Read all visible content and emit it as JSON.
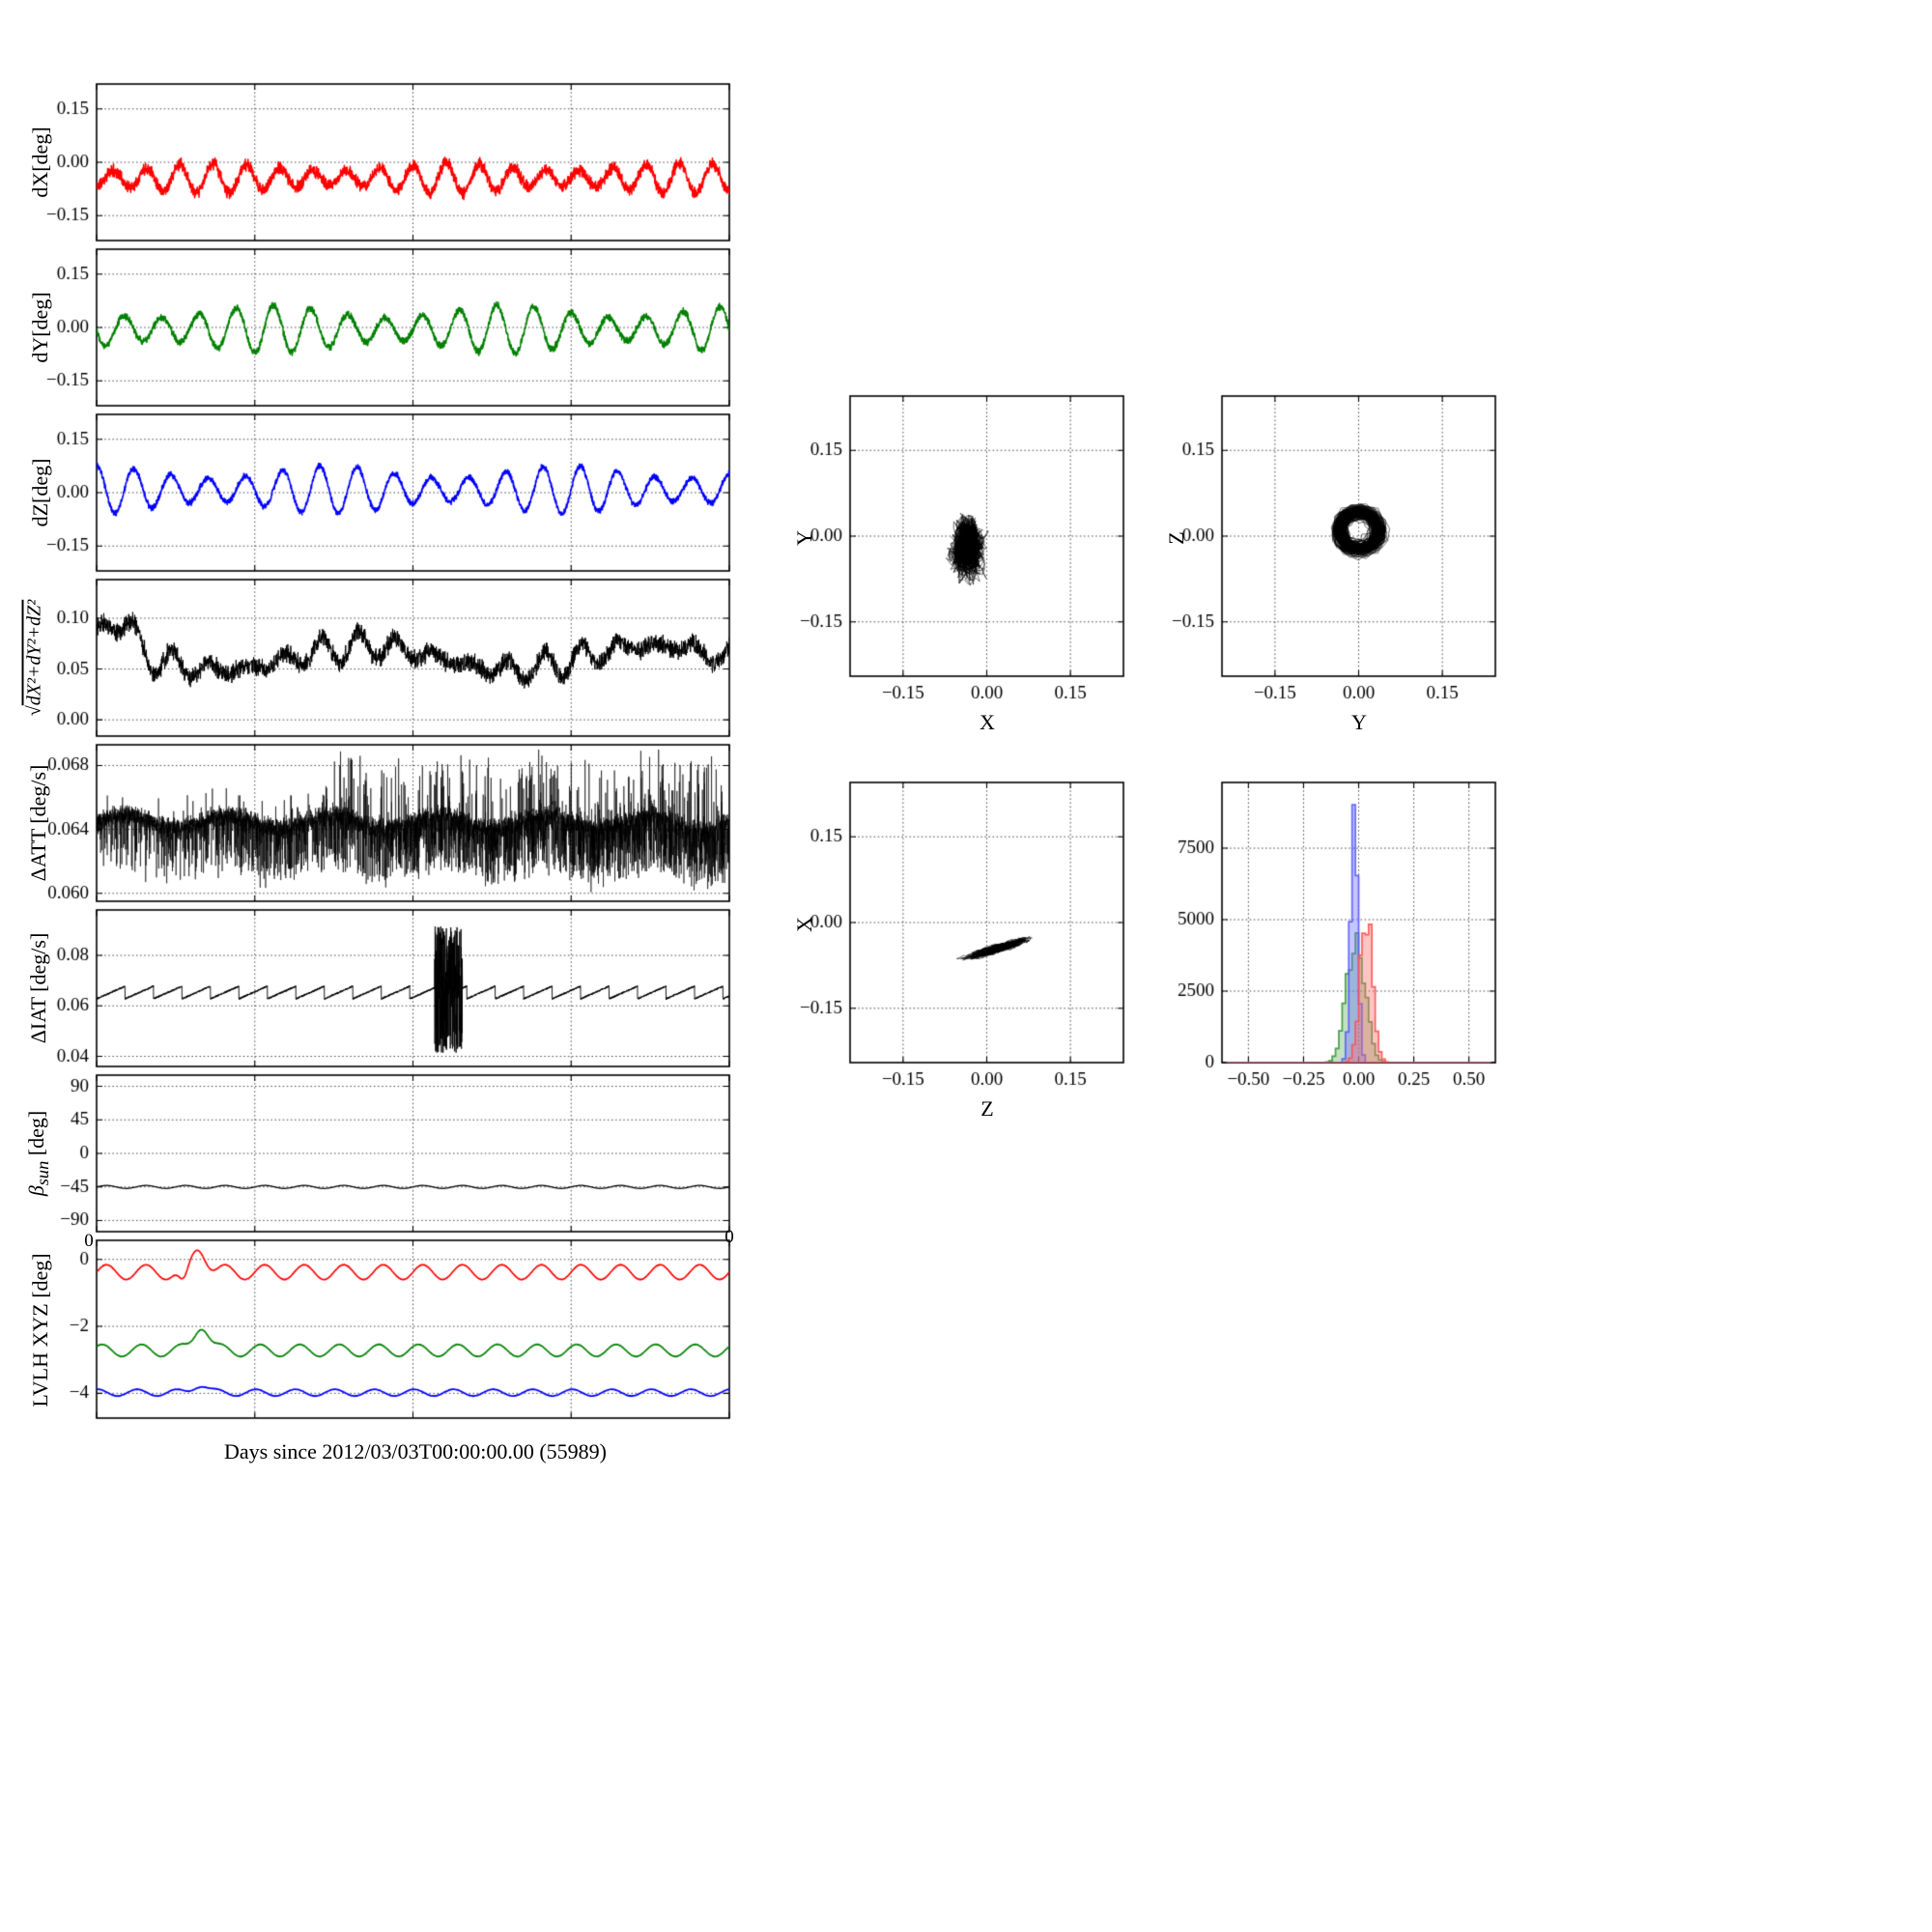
{
  "figure": {
    "xlabel": "Days since 2012/03/03T00:00:00.00 (55989)"
  },
  "chart_data": {
    "type": "line",
    "layout": "8 stacked time-series panels (left), 3 scatter panels + 1 histogram (right)",
    "x_axis": {
      "label": "Days since 2012/03/03T00:00:00.00 (55989)",
      "range_days": [
        0,
        16
      ],
      "ticks": [
        0,
        4,
        8,
        12,
        16
      ]
    },
    "plots": {
      "dx": {
        "kind": "osc",
        "ylabel": "dX[deg]",
        "color": "#ff0000",
        "y_range": [
          -0.22,
          0.22
        ],
        "yticks": {
          "values": [
            0.15,
            0.0,
            -0.15
          ],
          "labels": [
            "0.15",
            "0.00",
            "−0.15"
          ]
        },
        "summary": {
          "mean": -0.045,
          "amplitude": 0.032,
          "cycles": 19,
          "noise": 0.02,
          "clip_max": 0.015
        },
        "seed": 11
      },
      "dy": {
        "kind": "osc",
        "ylabel": "dY[deg]",
        "color": "#008000",
        "y_range": [
          -0.22,
          0.22
        ],
        "yticks": {
          "values": [
            0.15,
            0.0,
            -0.15
          ],
          "labels": [
            "0.15",
            "0.00",
            "−0.15"
          ]
        },
        "summary": {
          "mean": -0.005,
          "amplitude": 0.05,
          "cycles": 17,
          "noise": 0.012
        },
        "seed": 22
      },
      "dz": {
        "kind": "osc",
        "ylabel": "dZ[deg]",
        "color": "#0000ff",
        "y_range": [
          -0.22,
          0.22
        ],
        "yticks": {
          "values": [
            0.15,
            0.0,
            -0.15
          ],
          "labels": [
            "0.15",
            "0.00",
            "−0.15"
          ]
        },
        "summary": {
          "mean": 0.008,
          "amplitude": 0.05,
          "cycles": 17,
          "noise": 0.01
        },
        "seed": 33
      },
      "mag": {
        "kind": "mag",
        "ylabel_radical": "√",
        "ylabel_expr": "dX²+dY²+dZ²",
        "color": "#000000",
        "y_range": [
          -0.016,
          0.138
        ],
        "yticks": {
          "values": [
            0.1,
            0.05,
            0.0
          ],
          "labels": [
            "0.10",
            "0.05",
            "0.00"
          ]
        },
        "summary": {
          "mean": 0.06,
          "min": 0.03,
          "max": 0.11,
          "cycles": 17,
          "noise": 0.011
        },
        "seed": 44
      },
      "att": {
        "kind": "att",
        "ylabel": "ΔATT [deg/s]",
        "color": "#000000",
        "y_range": [
          0.0595,
          0.0693
        ],
        "yticks": {
          "values": [
            0.068,
            0.064,
            0.06
          ],
          "labels": [
            "0.068",
            "0.064",
            "0.060"
          ]
        },
        "summary": {
          "base": 0.0645,
          "spike_down_to": 0.061,
          "spike_up_to": 0.069,
          "spike_density_increases_with_time": true
        },
        "seed": 55
      },
      "iat": {
        "kind": "iat",
        "ylabel": "ΔIAT [deg/s]",
        "color": "#000000",
        "y_range": [
          0.036,
          0.098
        ],
        "yticks": {
          "values": [
            0.08,
            0.06,
            0.04
          ],
          "labels": [
            "0.08",
            "0.06",
            "0.04"
          ]
        },
        "summary": {
          "base": 0.063,
          "sawtooth_amp": 0.005,
          "period_days": 0.72,
          "burst_interval_days": [
            8.55,
            9.25
          ],
          "burst_amp": 0.026
        },
        "seed": 66
      },
      "beta": {
        "kind": "beta",
        "ylabel_beta": "β",
        "ylabel_sub": "sun",
        "ylabel_unit": " [deg]",
        "color": "#000000",
        "y_range": [
          -105,
          105
        ],
        "yticks": {
          "values": [
            90,
            45,
            0,
            -45,
            -90
          ],
          "labels": [
            "90",
            "45",
            "0",
            "−45",
            "−90"
          ]
        },
        "summary": {
          "mean": -45,
          "ripple": 2.0,
          "cycles": 16
        },
        "seed": 77,
        "edge_zero_left": "0",
        "edge_zero_right": "0"
      },
      "lvlh": {
        "kind": "lvlh",
        "ylabel": "LVLH XYZ [deg]",
        "y_range": [
          -4.74,
          0.57
        ],
        "yticks": {
          "values": [
            0,
            -2,
            -4
          ],
          "labels": [
            "0",
            "−2",
            "−4"
          ]
        },
        "series": [
          {
            "name": "X",
            "color": "#ff0000",
            "base": -0.38,
            "amplitude": 0.22,
            "cycles": 16,
            "bump": {
              "t": 2.6,
              "width": 0.26,
              "height": 0.75
            },
            "dip": {
              "t": 2.2,
              "width": 0.16,
              "depth": 0.45
            }
          },
          {
            "name": "Y",
            "color": "#008000",
            "base": -2.72,
            "amplitude": 0.18,
            "cycles": 16,
            "bump": {
              "t": 2.65,
              "width": 0.25,
              "height": 0.8
            }
          },
          {
            "name": "Z",
            "color": "#0000ff",
            "base": -3.98,
            "amplitude": 0.1,
            "cycles": 16,
            "bump": {
              "t": 2.6,
              "width": 0.25,
              "height": 0.25
            }
          }
        ],
        "seed": 88
      }
    },
    "scatter_plots": {
      "yx": {
        "xlabel": "X",
        "ylabel": "Y",
        "shape": "blob",
        "color": "#000000",
        "x_range": [
          -0.245,
          0.245
        ],
        "y_range": [
          -0.245,
          0.245
        ],
        "xticks": {
          "values": [
            -0.15,
            0.0,
            0.15
          ],
          "labels": [
            "−0.15",
            "0.00",
            "0.15"
          ]
        },
        "yticks": {
          "values": [
            0.15,
            0.0,
            -0.15
          ],
          "labels": [
            "0.15",
            "0.00",
            "−0.15"
          ]
        },
        "center": [
          -0.035,
          -0.02
        ],
        "spread": [
          0.03,
          0.05
        ],
        "seed": 101
      },
      "zy": {
        "xlabel": "Y",
        "ylabel": "Z",
        "shape": "ring",
        "color": "#000000",
        "x_range": [
          -0.245,
          0.245
        ],
        "y_range": [
          -0.245,
          0.245
        ],
        "xticks": {
          "values": [
            -0.15,
            0.0,
            0.15
          ],
          "labels": [
            "−0.15",
            "0.00",
            "0.15"
          ]
        },
        "yticks": {
          "values": [
            0.15,
            0.0,
            -0.15
          ],
          "labels": [
            "0.15",
            "0.00",
            "−0.15"
          ]
        },
        "center": [
          0.0,
          0.01
        ],
        "ring_radius": 0.035,
        "ring_width": 0.022,
        "seed": 102
      },
      "xz": {
        "xlabel": "Z",
        "ylabel": "X",
        "shape": "slant",
        "color": "#000000",
        "x_range": [
          -0.245,
          0.245
        ],
        "y_range": [
          -0.245,
          0.245
        ],
        "xticks": {
          "values": [
            -0.15,
            0.0,
            0.15
          ],
          "labels": [
            "−0.15",
            "0.00",
            "0.15"
          ]
        },
        "yticks": {
          "values": [
            0.15,
            0.0,
            -0.15
          ],
          "labels": [
            "0.15",
            "0.00",
            "−0.15"
          ]
        },
        "center": [
          0.02,
          -0.045
        ],
        "spread": [
          0.055,
          0.008
        ],
        "slope": 0.3,
        "seed": 103
      }
    },
    "histogram": {
      "x_range": [
        -0.62,
        0.62
      ],
      "xticks": {
        "values": [
          -0.5,
          -0.25,
          0.0,
          0.25,
          0.5
        ],
        "labels": [
          "−0.50",
          "−0.25",
          "0.00",
          "0.25",
          "0.50"
        ]
      },
      "y_range": [
        0,
        9800
      ],
      "yticks": {
        "values": [
          0,
          2500,
          5000,
          7500
        ],
        "labels": [
          "0",
          "2500",
          "5000",
          "7500"
        ]
      },
      "bin_width": 0.015,
      "series": [
        {
          "name": "green",
          "mu": -0.012,
          "sigma": 0.04,
          "peak": 4700,
          "fill": "rgba(80,170,80,0.35)",
          "stroke": "rgba(60,150,60,0.9)"
        },
        {
          "name": "blue",
          "mu": -0.02,
          "sigma": 0.016,
          "peak": 9100,
          "fill": "rgba(110,110,255,0.4)",
          "stroke": "rgba(90,90,255,0.9)"
        },
        {
          "name": "red",
          "mu": 0.035,
          "sigma": 0.028,
          "peak": 5100,
          "fill": "rgba(255,110,110,0.4)",
          "stroke": "rgba(255,80,80,0.9)"
        }
      ],
      "seed": 104
    }
  }
}
